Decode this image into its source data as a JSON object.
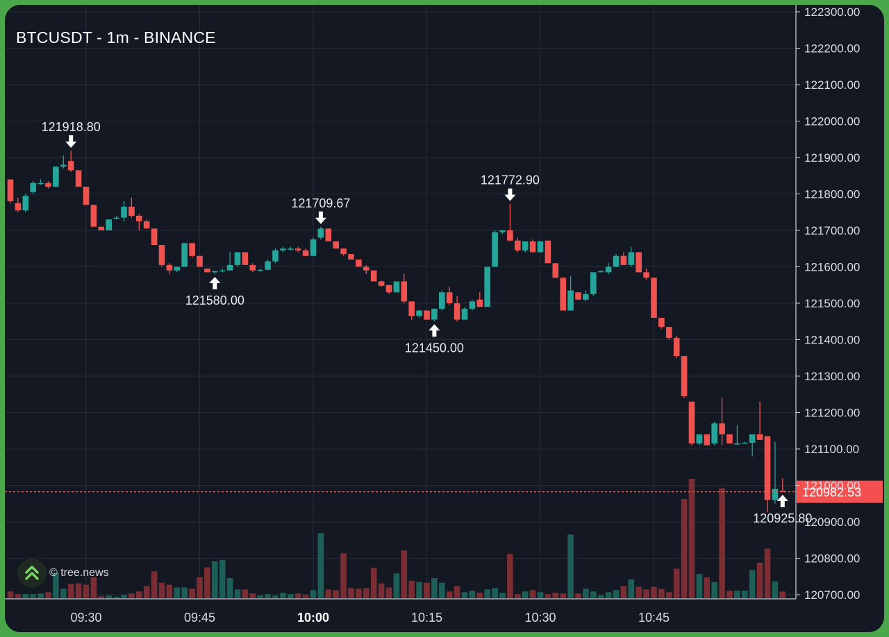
{
  "chart_data": {
    "type": "candlestick",
    "title": "BTCUSDT - 1m - BINANCE",
    "colors": {
      "up": "#26a69a",
      "down": "#ef5350",
      "last_price": "#f4504f",
      "background": "#141823",
      "grid": "#262b38"
    },
    "ylim": [
      120700,
      122300
    ],
    "y_ticks": [
      "120700.00",
      "120800.00",
      "120900.00",
      "121000.00",
      "121100.00",
      "121200.00",
      "121300.00",
      "121400.00",
      "121500.00",
      "121600.00",
      "121700.00",
      "121800.00",
      "121900.00",
      "122000.00",
      "122100.00",
      "122200.00",
      "122300.00"
    ],
    "x_ticks": [
      {
        "label": "09:30",
        "time": "09:30",
        "bold": false
      },
      {
        "label": "09:45",
        "time": "09:45",
        "bold": false
      },
      {
        "label": "10:00",
        "time": "10:00",
        "bold": true
      },
      {
        "label": "10:15",
        "time": "10:15",
        "bold": false
      },
      {
        "label": "10:30",
        "time": "10:30",
        "bold": false
      },
      {
        "label": "10:45",
        "time": "10:45",
        "bold": false
      }
    ],
    "start_time": "09:20",
    "last_price": "120982.53",
    "candles": [
      {
        "o": 121840,
        "h": 121840,
        "l": 121775,
        "c": 121780,
        "v": 10
      },
      {
        "o": 121775,
        "h": 121790,
        "l": 121750,
        "c": 121755,
        "v": 6
      },
      {
        "o": 121755,
        "h": 121800,
        "l": 121750,
        "c": 121795,
        "v": 6
      },
      {
        "o": 121805,
        "h": 121835,
        "l": 121800,
        "c": 121830,
        "v": 6
      },
      {
        "o": 121830,
        "h": 121840,
        "l": 121825,
        "c": 121830,
        "v": 7
      },
      {
        "o": 121830,
        "h": 121835,
        "l": 121815,
        "c": 121820,
        "v": 9
      },
      {
        "o": 121820,
        "h": 121875,
        "l": 121818,
        "c": 121875,
        "v": 38
      },
      {
        "o": 121875,
        "h": 121905,
        "l": 121870,
        "c": 121880,
        "v": 14
      },
      {
        "o": 121890,
        "h": 121919,
        "l": 121860,
        "c": 121865,
        "v": 21
      },
      {
        "o": 121865,
        "h": 121865,
        "l": 121820,
        "c": 121820,
        "v": 22
      },
      {
        "o": 121820,
        "h": 121820,
        "l": 121770,
        "c": 121770,
        "v": 20
      },
      {
        "o": 121770,
        "h": 121770,
        "l": 121710,
        "c": 121710,
        "v": 31
      },
      {
        "o": 121710,
        "h": 121710,
        "l": 121700,
        "c": 121700,
        "v": 3
      },
      {
        "o": 121700,
        "h": 121730,
        "l": 121700,
        "c": 121730,
        "v": 4
      },
      {
        "o": 121732,
        "h": 121740,
        "l": 121730,
        "c": 121735,
        "v": 2
      },
      {
        "o": 121735,
        "h": 121780,
        "l": 121725,
        "c": 121765,
        "v": 5
      },
      {
        "o": 121765,
        "h": 121790,
        "l": 121735,
        "c": 121740,
        "v": 7
      },
      {
        "o": 121740,
        "h": 121745,
        "l": 121700,
        "c": 121725,
        "v": 10
      },
      {
        "o": 121725,
        "h": 121730,
        "l": 121705,
        "c": 121705,
        "v": 18
      },
      {
        "o": 121705,
        "h": 121705,
        "l": 121660,
        "c": 121660,
        "v": 40
      },
      {
        "o": 121660,
        "h": 121660,
        "l": 121600,
        "c": 121605,
        "v": 23
      },
      {
        "o": 121605,
        "h": 121610,
        "l": 121580,
        "c": 121590,
        "v": 20
      },
      {
        "o": 121590,
        "h": 121600,
        "l": 121585,
        "c": 121600,
        "v": 16
      },
      {
        "o": 121600,
        "h": 121665,
        "l": 121600,
        "c": 121665,
        "v": 16
      },
      {
        "o": 121665,
        "h": 121665,
        "l": 121625,
        "c": 121630,
        "v": 14
      },
      {
        "o": 121630,
        "h": 121630,
        "l": 121600,
        "c": 121600,
        "v": 31
      },
      {
        "o": 121595,
        "h": 121595,
        "l": 121585,
        "c": 121585,
        "v": 46
      },
      {
        "o": 121585,
        "h": 121590,
        "l": 121580,
        "c": 121588,
        "v": 55
      },
      {
        "o": 121588,
        "h": 121595,
        "l": 121585,
        "c": 121590,
        "v": 57
      },
      {
        "o": 121590,
        "h": 121640,
        "l": 121590,
        "c": 121605,
        "v": 30
      },
      {
        "o": 121605,
        "h": 121640,
        "l": 121600,
        "c": 121640,
        "v": 13
      },
      {
        "o": 121640,
        "h": 121640,
        "l": 121605,
        "c": 121605,
        "v": 13
      },
      {
        "o": 121605,
        "h": 121610,
        "l": 121585,
        "c": 121590,
        "v": 7
      },
      {
        "o": 121590,
        "h": 121595,
        "l": 121585,
        "c": 121592,
        "v": 4
      },
      {
        "o": 121592,
        "h": 121620,
        "l": 121590,
        "c": 121615,
        "v": 6
      },
      {
        "o": 121615,
        "h": 121650,
        "l": 121610,
        "c": 121645,
        "v": 4
      },
      {
        "o": 121645,
        "h": 121655,
        "l": 121640,
        "c": 121650,
        "v": 8
      },
      {
        "o": 121650,
        "h": 121655,
        "l": 121645,
        "c": 121650,
        "v": 6
      },
      {
        "o": 121650,
        "h": 121655,
        "l": 121640,
        "c": 121645,
        "v": 7
      },
      {
        "o": 121645,
        "h": 121650,
        "l": 121630,
        "c": 121630,
        "v": 5
      },
      {
        "o": 121630,
        "h": 121680,
        "l": 121630,
        "c": 121675,
        "v": 12
      },
      {
        "o": 121680,
        "h": 121710,
        "l": 121675,
        "c": 121705,
        "v": 97
      },
      {
        "o": 121705,
        "h": 121706,
        "l": 121670,
        "c": 121670,
        "v": 13
      },
      {
        "o": 121670,
        "h": 121670,
        "l": 121650,
        "c": 121650,
        "v": 12
      },
      {
        "o": 121650,
        "h": 121650,
        "l": 121630,
        "c": 121635,
        "v": 67
      },
      {
        "o": 121635,
        "h": 121635,
        "l": 121620,
        "c": 121620,
        "v": 15
      },
      {
        "o": 121620,
        "h": 121620,
        "l": 121600,
        "c": 121600,
        "v": 14
      },
      {
        "o": 121600,
        "h": 121605,
        "l": 121580,
        "c": 121590,
        "v": 15
      },
      {
        "o": 121590,
        "h": 121590,
        "l": 121560,
        "c": 121560,
        "v": 45
      },
      {
        "o": 121560,
        "h": 121562,
        "l": 121545,
        "c": 121548,
        "v": 22
      },
      {
        "o": 121550,
        "h": 121550,
        "l": 121525,
        "c": 121530,
        "v": 16
      },
      {
        "o": 121530,
        "h": 121560,
        "l": 121530,
        "c": 121560,
        "v": 37
      },
      {
        "o": 121560,
        "h": 121580,
        "l": 121500,
        "c": 121505,
        "v": 71
      },
      {
        "o": 121505,
        "h": 121505,
        "l": 121455,
        "c": 121465,
        "v": 26
      },
      {
        "o": 121465,
        "h": 121482,
        "l": 121460,
        "c": 121480,
        "v": 24
      },
      {
        "o": 121480,
        "h": 121480,
        "l": 121455,
        "c": 121455,
        "v": 23
      },
      {
        "o": 121455,
        "h": 121485,
        "l": 121450,
        "c": 121485,
        "v": 30
      },
      {
        "o": 121485,
        "h": 121535,
        "l": 121480,
        "c": 121530,
        "v": 23
      },
      {
        "o": 121530,
        "h": 121545,
        "l": 121495,
        "c": 121500,
        "v": 10
      },
      {
        "o": 121500,
        "h": 121520,
        "l": 121450,
        "c": 121455,
        "v": 18
      },
      {
        "o": 121455,
        "h": 121490,
        "l": 121455,
        "c": 121485,
        "v": 9
      },
      {
        "o": 121485,
        "h": 121510,
        "l": 121480,
        "c": 121505,
        "v": 11
      },
      {
        "o": 121510,
        "h": 121530,
        "l": 121490,
        "c": 121490,
        "v": 8
      },
      {
        "o": 121490,
        "h": 121600,
        "l": 121490,
        "c": 121600,
        "v": 13
      },
      {
        "o": 121600,
        "h": 121700,
        "l": 121600,
        "c": 121695,
        "v": 15
      },
      {
        "o": 121695,
        "h": 121700,
        "l": 121690,
        "c": 121700,
        "v": 8
      },
      {
        "o": 121700,
        "h": 121773,
        "l": 121670,
        "c": 121672,
        "v": 66
      },
      {
        "o": 121672,
        "h": 121680,
        "l": 121640,
        "c": 121645,
        "v": 6
      },
      {
        "o": 121645,
        "h": 121670,
        "l": 121640,
        "c": 121670,
        "v": 10
      },
      {
        "o": 121670,
        "h": 121675,
        "l": 121640,
        "c": 121640,
        "v": 12
      },
      {
        "o": 121640,
        "h": 121670,
        "l": 121640,
        "c": 121670,
        "v": 9
      },
      {
        "o": 121672,
        "h": 121672,
        "l": 121610,
        "c": 121610,
        "v": 6
      },
      {
        "o": 121610,
        "h": 121610,
        "l": 121570,
        "c": 121570,
        "v": 8
      },
      {
        "o": 121570,
        "h": 121570,
        "l": 121480,
        "c": 121480,
        "v": 7
      },
      {
        "o": 121480,
        "h": 121575,
        "l": 121480,
        "c": 121535,
        "v": 95
      },
      {
        "o": 121530,
        "h": 121530,
        "l": 121510,
        "c": 121510,
        "v": 7
      },
      {
        "o": 121510,
        "h": 121535,
        "l": 121505,
        "c": 121525,
        "v": 14
      },
      {
        "o": 121525,
        "h": 121585,
        "l": 121520,
        "c": 121585,
        "v": 10
      },
      {
        "o": 121585,
        "h": 121590,
        "l": 121585,
        "c": 121588,
        "v": 4
      },
      {
        "o": 121585,
        "h": 121610,
        "l": 121580,
        "c": 121600,
        "v": 9
      },
      {
        "o": 121600,
        "h": 121635,
        "l": 121600,
        "c": 121630,
        "v": 12
      },
      {
        "o": 121630,
        "h": 121640,
        "l": 121605,
        "c": 121605,
        "v": 18
      },
      {
        "o": 121605,
        "h": 121655,
        "l": 121600,
        "c": 121640,
        "v": 28
      },
      {
        "o": 121640,
        "h": 121640,
        "l": 121585,
        "c": 121585,
        "v": 17
      },
      {
        "o": 121585,
        "h": 121595,
        "l": 121565,
        "c": 121570,
        "v": 13
      },
      {
        "o": 121570,
        "h": 121570,
        "l": 121460,
        "c": 121460,
        "v": 17
      },
      {
        "o": 121460,
        "h": 121460,
        "l": 121430,
        "c": 121435,
        "v": 14
      },
      {
        "o": 121435,
        "h": 121435,
        "l": 121400,
        "c": 121405,
        "v": 9
      },
      {
        "o": 121405,
        "h": 121410,
        "l": 121350,
        "c": 121355,
        "v": 44
      },
      {
        "o": 121355,
        "h": 121355,
        "l": 121240,
        "c": 121245,
        "v": 148
      },
      {
        "o": 121230,
        "h": 121230,
        "l": 121110,
        "c": 121115,
        "v": 178
      },
      {
        "o": 121115,
        "h": 121140,
        "l": 121110,
        "c": 121140,
        "v": 36
      },
      {
        "o": 121140,
        "h": 121140,
        "l": 121110,
        "c": 121110,
        "v": 31
      },
      {
        "o": 121115,
        "h": 121175,
        "l": 121110,
        "c": 121170,
        "v": 24
      },
      {
        "o": 121170,
        "h": 121240,
        "l": 121110,
        "c": 121140,
        "v": 164
      },
      {
        "o": 121140,
        "h": 121140,
        "l": 121115,
        "c": 121115,
        "v": 11
      },
      {
        "o": 121115,
        "h": 121165,
        "l": 121112,
        "c": 121115,
        "v": 11
      },
      {
        "o": 121115,
        "h": 121120,
        "l": 121115,
        "c": 121117,
        "v": 11
      },
      {
        "o": 121117,
        "h": 121140,
        "l": 121080,
        "c": 121140,
        "v": 42
      },
      {
        "o": 121140,
        "h": 121230,
        "l": 121125,
        "c": 121125,
        "v": 53
      },
      {
        "o": 121135,
        "h": 121135,
        "l": 120926,
        "c": 120960,
        "v": 74
      },
      {
        "o": 120960,
        "h": 121120,
        "l": 120950,
        "c": 120990,
        "v": 25
      },
      {
        "o": 120985,
        "h": 121020,
        "l": 120982,
        "c": 120982,
        "v": 10
      }
    ],
    "annotations": [
      {
        "candle": 8,
        "label": "121918.80",
        "kind": "high"
      },
      {
        "candle": 27,
        "label": "121580.00",
        "kind": "low"
      },
      {
        "candle": 41,
        "label": "121709.67",
        "kind": "high"
      },
      {
        "candle": 56,
        "label": "121450.00",
        "kind": "low"
      },
      {
        "candle": 66,
        "label": "121772.90",
        "kind": "high"
      },
      {
        "candle": 102,
        "label": "120925.80",
        "kind": "low"
      }
    ]
  },
  "watermark": {
    "text": "© tree.news",
    "logo_icon": "double-chevron-up-icon"
  }
}
